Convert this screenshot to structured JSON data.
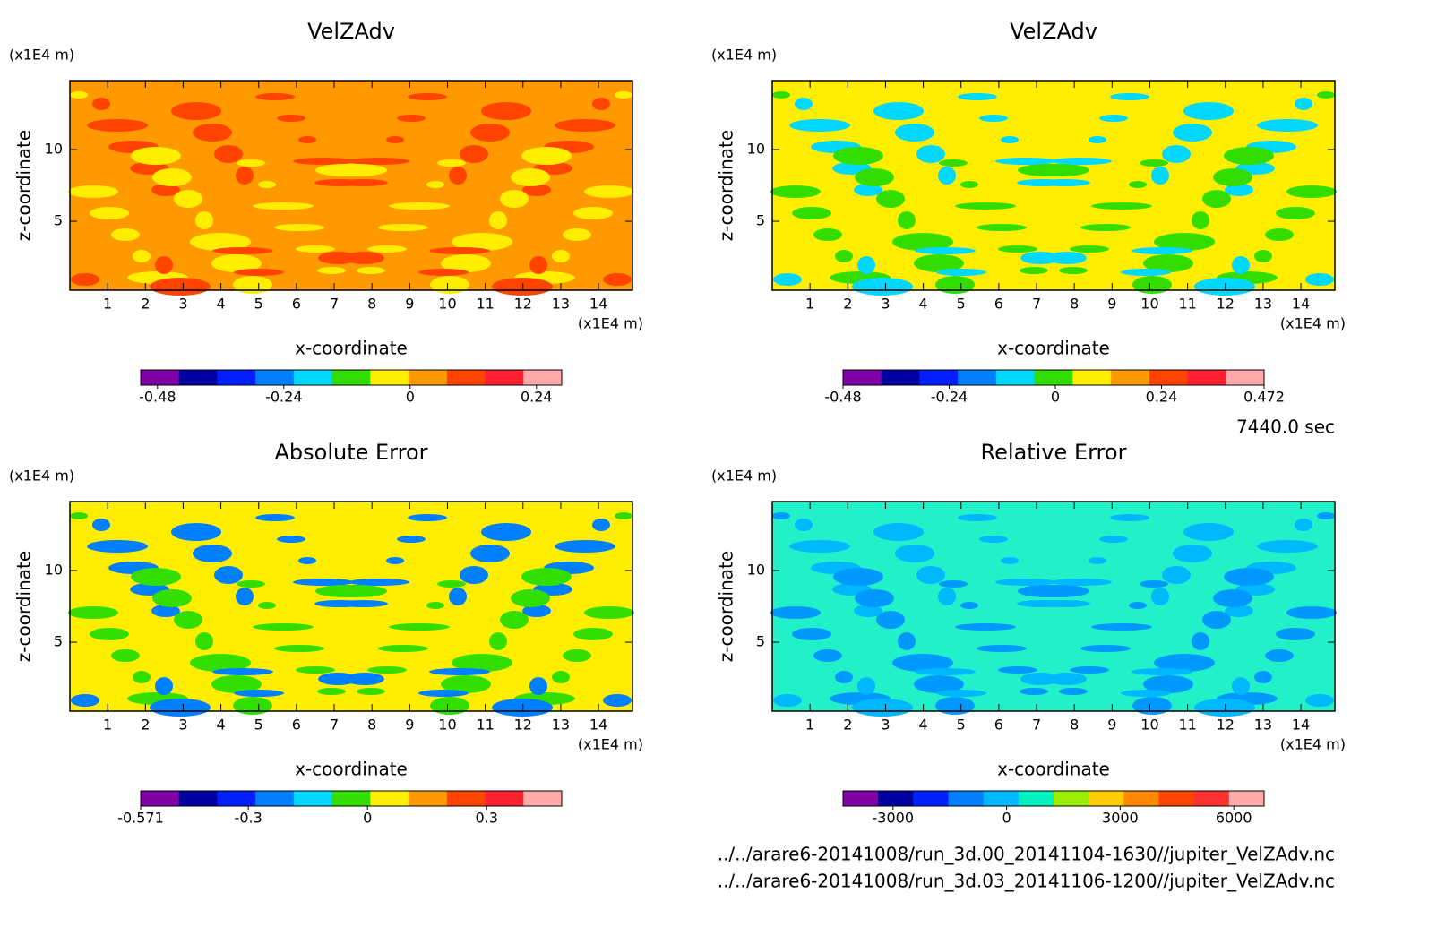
{
  "chart_data": [
    {
      "type": "contour",
      "title": "VelZAdv",
      "x_label": "x-coordinate",
      "y_label": "z-coordinate",
      "x_unit": "(x1E4 m)",
      "y_unit": "(x1E4 m)",
      "xlim": [
        0,
        14.9
      ],
      "ylim": [
        0.2,
        14.8
      ],
      "xticks": [
        1,
        2,
        3,
        4,
        5,
        6,
        7,
        8,
        9,
        10,
        11,
        12,
        13,
        14
      ],
      "yticks": [
        5,
        10
      ],
      "colorbar": {
        "colors": [
          "#8000a8",
          "#0000a0",
          "#0020ff",
          "#0080ff",
          "#00d8ff",
          "#33dd00",
          "#ffee00",
          "#ff9900",
          "#ff4400",
          "#ff2030",
          "#ffaaaa"
        ],
        "clim": [
          -0.512,
          0.288
        ],
        "ticks": [
          -0.48,
          -0.24,
          0,
          0.24
        ]
      }
    },
    {
      "type": "contour",
      "title": "VelZAdv",
      "x_label": "x-coordinate",
      "y_label": "z-coordinate",
      "x_unit": "(x1E4 m)",
      "y_unit": "(x1E4 m)",
      "xlim": [
        0,
        14.9
      ],
      "ylim": [
        0.2,
        14.8
      ],
      "xticks": [
        1,
        2,
        3,
        4,
        5,
        6,
        7,
        8,
        9,
        10,
        11,
        12,
        13,
        14
      ],
      "yticks": [
        5,
        10
      ],
      "colorbar": {
        "colors": [
          "#8000a8",
          "#0000a0",
          "#0020ff",
          "#0080ff",
          "#00d8ff",
          "#33dd00",
          "#ffee00",
          "#ff9900",
          "#ff4400",
          "#ff2030",
          "#ffaaaa"
        ],
        "clim": [
          -0.48,
          0.472
        ],
        "ticks": [
          -0.48,
          -0.24,
          0,
          0.24,
          0.472
        ]
      }
    },
    {
      "type": "contour",
      "title": "Absolute Error",
      "x_label": "x-coordinate",
      "y_label": "z-coordinate",
      "x_unit": "(x1E4 m)",
      "y_unit": "(x1E4 m)",
      "xlim": [
        0,
        14.9
      ],
      "ylim": [
        0.2,
        14.8
      ],
      "xticks": [
        1,
        2,
        3,
        4,
        5,
        6,
        7,
        8,
        9,
        10,
        11,
        12,
        13,
        14
      ],
      "yticks": [
        5,
        10
      ],
      "colorbar": {
        "colors": [
          "#8000a8",
          "#0000a0",
          "#0020ff",
          "#0080ff",
          "#00d8ff",
          "#33dd00",
          "#ffee00",
          "#ff9900",
          "#ff4400",
          "#ff2030",
          "#ffaaaa"
        ],
        "clim": [
          -0.571,
          0.489
        ],
        "ticks": [
          -0.571,
          -0.3,
          0,
          0.3
        ]
      }
    },
    {
      "type": "contour",
      "title": "Relative Error",
      "x_label": "x-coordinate",
      "y_label": "z-coordinate",
      "x_unit": "(x1E4 m)",
      "y_unit": "(x1E4 m)",
      "xlim": [
        0,
        14.9
      ],
      "ylim": [
        0.2,
        14.8
      ],
      "xticks": [
        1,
        2,
        3,
        4,
        5,
        6,
        7,
        8,
        9,
        10,
        11,
        12,
        13,
        14
      ],
      "yticks": [
        5,
        10
      ],
      "colorbar": {
        "colors": [
          "#8000a8",
          "#0000a0",
          "#0020ff",
          "#0080ff",
          "#00b8ff",
          "#00f0c0",
          "#99ee00",
          "#ffcc00",
          "#ff8800",
          "#ff4400",
          "#ff3030",
          "#ffaaaa"
        ],
        "clim": [
          -4320,
          6800
        ],
        "ticks": [
          -3000,
          0,
          3000,
          6000
        ]
      }
    }
  ],
  "footer": {
    "time": "7440.0 sec",
    "files": [
      "../../arare6-20141008/run_3d.00_20141104-1630//jupiter_VelZAdv.nc",
      "../../arare6-20141008/run_3d.03_20141106-1200//jupiter_VelZAdv.nc"
    ]
  }
}
